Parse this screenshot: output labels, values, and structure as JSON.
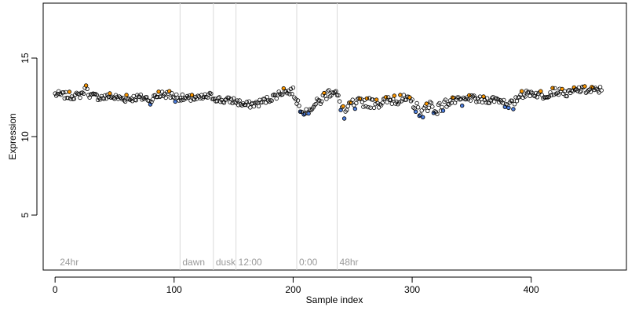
{
  "chart_data": {
    "type": "scatter",
    "title": "",
    "xlabel": "Sample index",
    "ylabel": "Expression",
    "xlim": [
      -10,
      480
    ],
    "ylim": [
      1.5,
      18.5
    ],
    "x_ticks": [
      0,
      100,
      200,
      300,
      400
    ],
    "y_ticks": [
      5,
      10,
      15
    ],
    "grid": false,
    "legend": "none",
    "markers": [
      {
        "x": 2,
        "label": "24hr"
      },
      {
        "x": 105,
        "label": "dawn"
      },
      {
        "x": 133,
        "label": "dusk"
      },
      {
        "x": 152,
        "label": "12:00"
      },
      {
        "x": 203,
        "label": "0:00"
      },
      {
        "x": 237,
        "label": "48hr"
      }
    ],
    "colors": {
      "normal": "#000000",
      "up": "#ff9900",
      "down": "#4d7fe0",
      "marker_line": "#d9d9d9",
      "marker_text": "#9a9a9a"
    },
    "anchors": [
      [
        0,
        12.7
      ],
      [
        10,
        12.6
      ],
      [
        20,
        12.6
      ],
      [
        26,
        13.0
      ],
      [
        30,
        12.6
      ],
      [
        40,
        12.5
      ],
      [
        50,
        12.5
      ],
      [
        60,
        12.4
      ],
      [
        70,
        12.5
      ],
      [
        80,
        12.4
      ],
      [
        90,
        12.7
      ],
      [
        100,
        12.6
      ],
      [
        110,
        12.4
      ],
      [
        120,
        12.4
      ],
      [
        130,
        12.6
      ],
      [
        140,
        12.3
      ],
      [
        150,
        12.3
      ],
      [
        160,
        12.0
      ],
      [
        170,
        12.1
      ],
      [
        180,
        12.4
      ],
      [
        190,
        12.8
      ],
      [
        200,
        12.9
      ],
      [
        205,
        12.0
      ],
      [
        210,
        11.7
      ],
      [
        220,
        12.1
      ],
      [
        230,
        12.8
      ],
      [
        235,
        13.0
      ],
      [
        238,
        12.4
      ],
      [
        243,
        11.5
      ],
      [
        250,
        12.1
      ],
      [
        260,
        12.2
      ],
      [
        270,
        12.1
      ],
      [
        280,
        12.3
      ],
      [
        290,
        12.4
      ],
      [
        300,
        12.2
      ],
      [
        308,
        11.5
      ],
      [
        315,
        12.1
      ],
      [
        320,
        11.7
      ],
      [
        330,
        12.2
      ],
      [
        340,
        12.3
      ],
      [
        350,
        12.4
      ],
      [
        360,
        12.3
      ],
      [
        370,
        12.4
      ],
      [
        380,
        12.2
      ],
      [
        385,
        12.1
      ],
      [
        390,
        12.6
      ],
      [
        400,
        12.8
      ],
      [
        410,
        12.6
      ],
      [
        420,
        12.9
      ],
      [
        430,
        12.7
      ],
      [
        440,
        13.0
      ],
      [
        450,
        12.9
      ],
      [
        460,
        13.0
      ]
    ],
    "n_points": 460,
    "highlight_up": [
      12,
      26,
      46,
      60,
      87,
      96,
      115,
      192,
      226,
      242,
      248,
      256,
      262,
      270,
      278,
      285,
      290,
      298,
      312,
      334,
      348,
      360,
      392,
      408,
      418,
      426,
      436,
      445,
      451
    ],
    "highlight_down": [
      80,
      101,
      206,
      209,
      213,
      240,
      243,
      252,
      303,
      306,
      309,
      318,
      326,
      342,
      378,
      381,
      385
    ]
  }
}
